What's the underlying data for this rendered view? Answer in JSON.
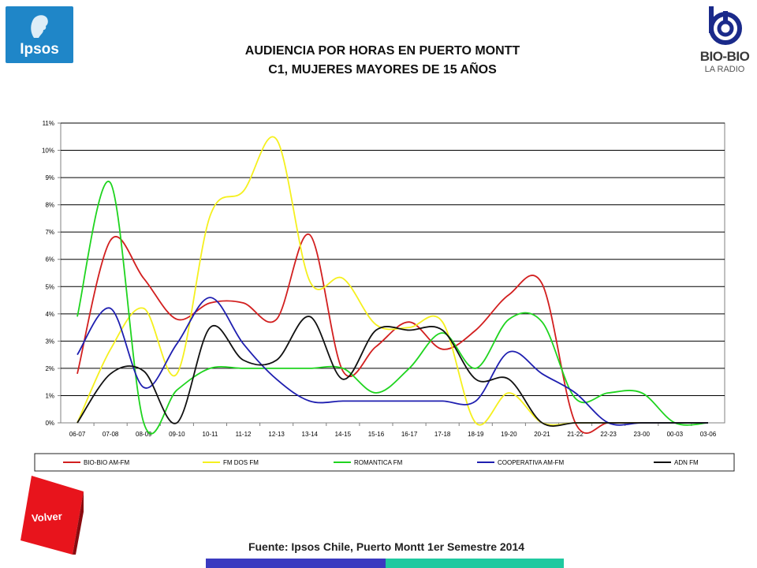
{
  "header": {
    "title_line1": "AUDIENCIA POR HORAS EN PUERTO MONTT",
    "title_line2": "C1, MUJERES MAYORES DE 15 AÑOS",
    "left_logo": {
      "text": "Ipsos",
      "icon": "ipsos-face-icon",
      "color": "#1f86c8"
    },
    "right_logo": {
      "text": "BIO-BIO",
      "subtext": "LA RADIO",
      "icon": "biobio-spiral-icon",
      "color": "#1a2a8a"
    }
  },
  "footer": {
    "source": "Fuente: Ipsos Chile, Puerto Montt 1er Semestre 2014",
    "back_button": "Volver",
    "colors": {
      "blue": "#3a3ac0",
      "teal": "#20c9a0",
      "back_button": "#e8141c"
    }
  },
  "chart_data": {
    "type": "line",
    "title": "",
    "xlabel": "",
    "ylabel": "",
    "ylim": [
      0,
      11
    ],
    "y_ticks": [
      "0%",
      "1%",
      "2%",
      "3%",
      "4%",
      "5%",
      "6%",
      "7%",
      "8%",
      "9%",
      "10%",
      "11%"
    ],
    "categories": [
      "06-07",
      "07-08",
      "08-09",
      "09-10",
      "10-11",
      "11-12",
      "12-13",
      "13-14",
      "14-15",
      "15-16",
      "16-17",
      "17-18",
      "18-19",
      "19-20",
      "20-21",
      "21-22",
      "22-23",
      "23-00",
      "00-03",
      "03-06"
    ],
    "grid": true,
    "legend": "bottom",
    "series": [
      {
        "name": "BIO-BIO AM-FM",
        "color": "#d21f1f",
        "values": [
          1.8,
          6.7,
          5.3,
          3.8,
          4.4,
          4.4,
          3.8,
          6.9,
          1.9,
          2.8,
          3.7,
          2.7,
          3.4,
          4.7,
          5.1,
          0.0,
          0.0,
          0.0,
          0.0,
          0.0
        ]
      },
      {
        "name": "FM DOS FM",
        "color": "#f5f01e",
        "values": [
          0.0,
          2.7,
          4.2,
          1.8,
          7.6,
          8.5,
          10.4,
          5.2,
          5.3,
          3.6,
          3.5,
          3.7,
          0.0,
          1.1,
          0.0,
          0.0,
          0.0,
          0.0,
          0.0,
          0.0
        ]
      },
      {
        "name": "ROMANTICA FM",
        "color": "#1fd41f",
        "values": [
          3.9,
          8.8,
          0.0,
          1.2,
          2.0,
          2.0,
          2.0,
          2.0,
          2.0,
          1.1,
          2.0,
          3.3,
          2.0,
          3.8,
          3.7,
          0.9,
          1.1,
          1.1,
          0.0,
          0.0
        ]
      },
      {
        "name": "COOPERATIVA AM-FM",
        "color": "#1f1fb0",
        "values": [
          2.5,
          4.2,
          1.3,
          2.9,
          4.6,
          2.9,
          1.6,
          0.8,
          0.8,
          0.8,
          0.8,
          0.8,
          0.8,
          2.6,
          1.8,
          1.1,
          0.0,
          0.0,
          0.0,
          0.0
        ]
      },
      {
        "name": "ADN FM",
        "color": "#111111",
        "values": [
          0.0,
          1.8,
          1.9,
          0.0,
          3.5,
          2.3,
          2.3,
          3.9,
          1.6,
          3.4,
          3.4,
          3.4,
          1.6,
          1.6,
          0.0,
          0.0,
          0.0,
          0.0,
          0.0,
          0.0
        ]
      }
    ]
  }
}
